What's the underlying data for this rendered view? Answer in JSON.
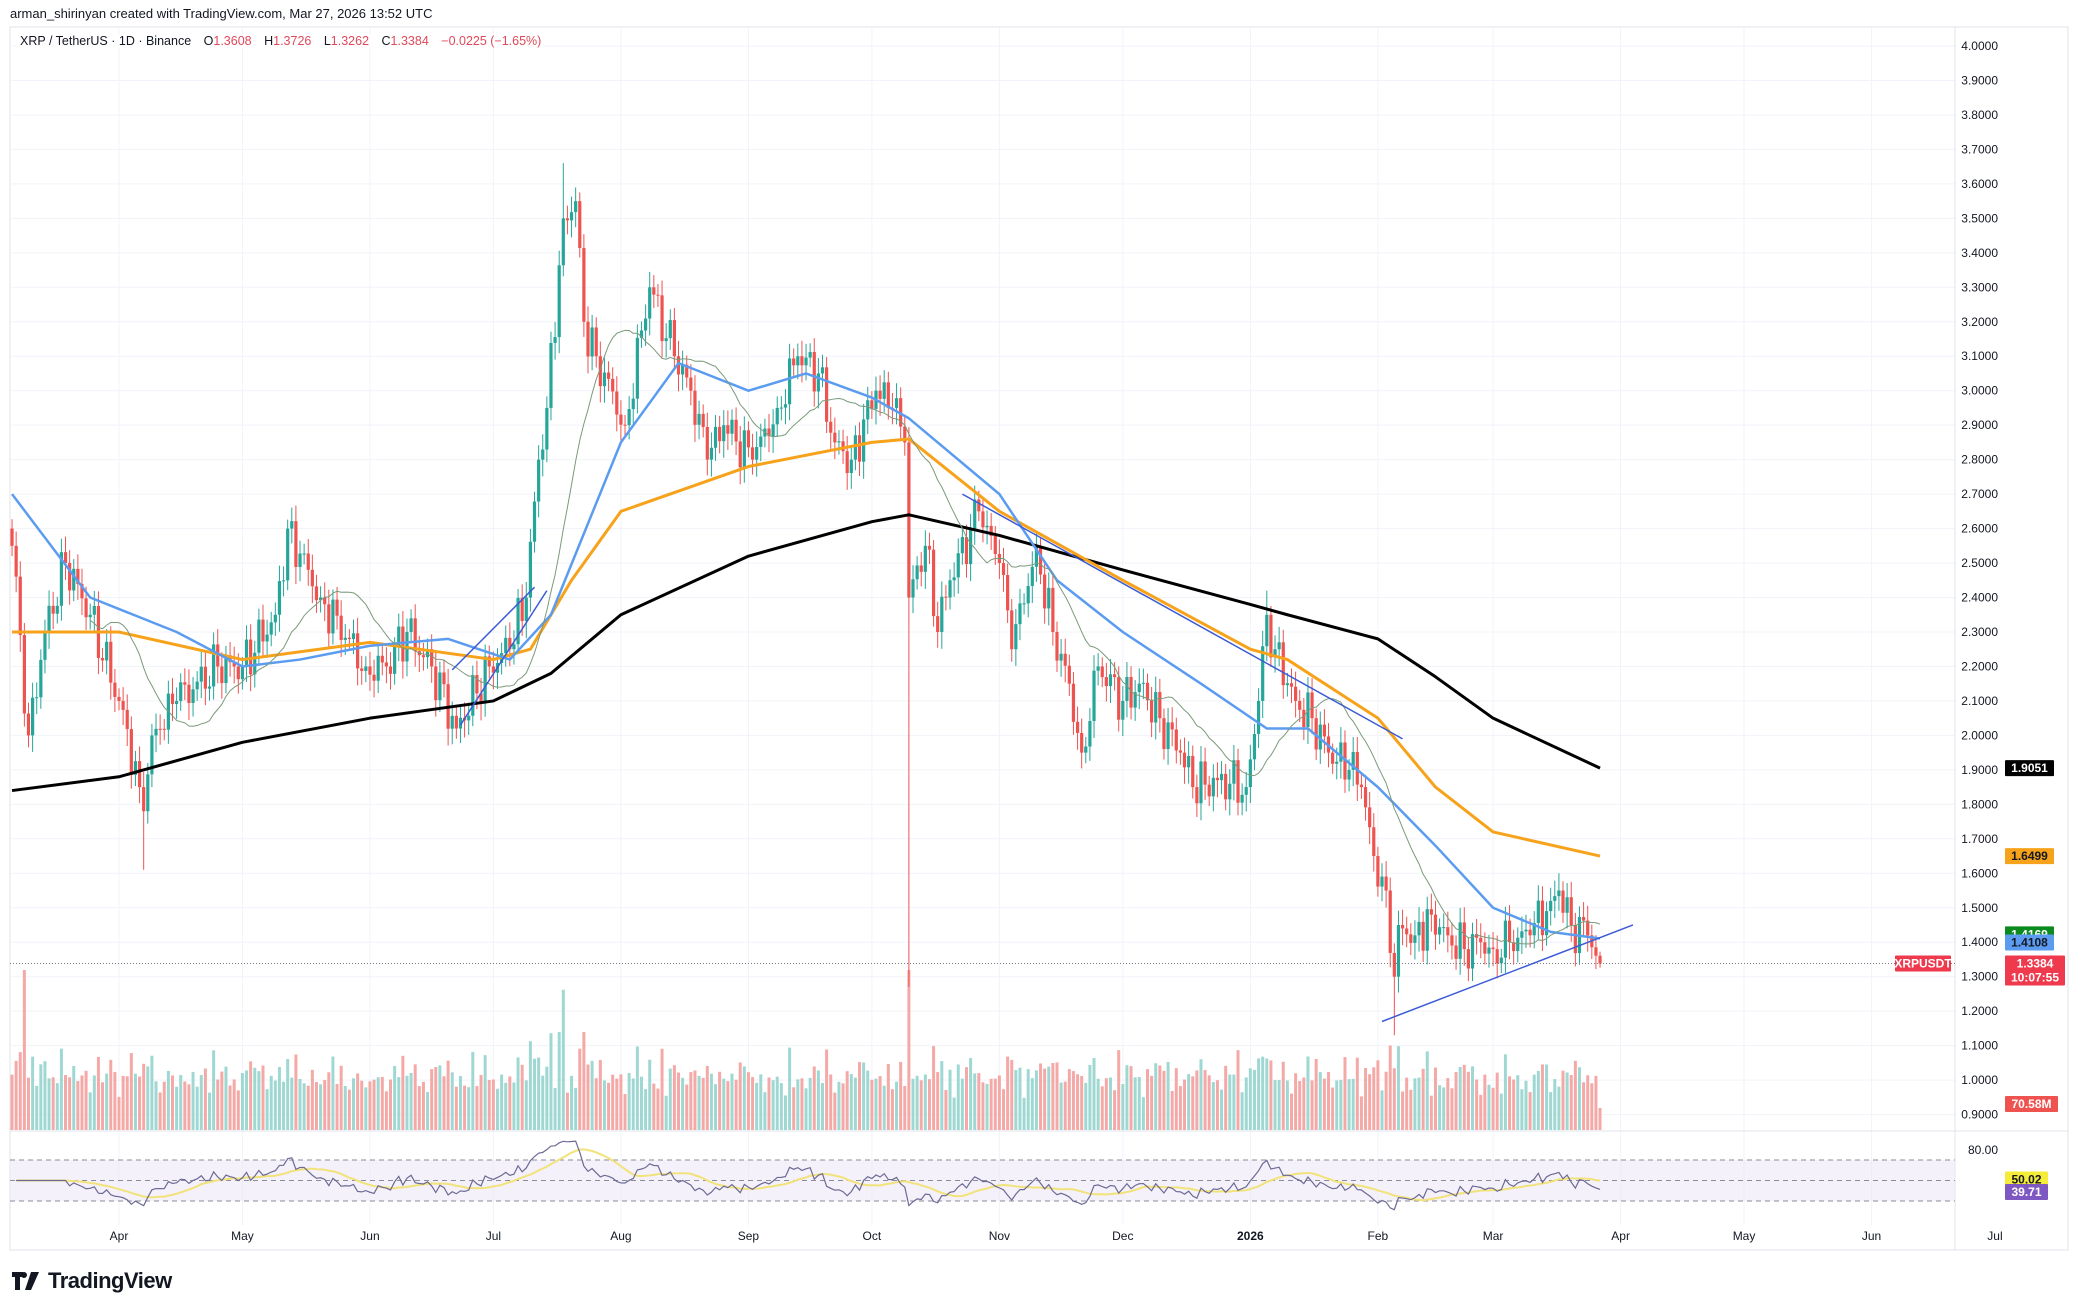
{
  "credit": "arman_shirinyan created with TradingView.com, Mar 27, 2026 13:52 UTC",
  "legend": {
    "symbol": "XRP / TetherUS · 1D · Binance",
    "o_label": "O",
    "o": "1.3608",
    "h_label": "H",
    "h": "1.3726",
    "l_label": "L",
    "l": "1.3262",
    "c_label": "C",
    "c": "1.3384",
    "change": "−0.0225 (−1.65%)"
  },
  "brand": "TradingView",
  "colors": {
    "up": "#26a69a",
    "down": "#ef5350",
    "ma200": "#000000",
    "ma100": "#f7a21b",
    "ma50": "#5b9cf0",
    "ma20": "#7a9a7a",
    "trendline": "#3b5bd6",
    "rsi": "#6c6a94",
    "rsi_ma": "#f2e27a",
    "rsi_band": "#ede7f6",
    "grid": "#f0f3fa"
  },
  "chart_data": {
    "type": "candlestick",
    "symbol": "XRPUSDT",
    "timeframe": "1D",
    "y_axis": {
      "range": [
        0.9,
        4.0
      ],
      "ticks": [
        "4.0000",
        "3.9000",
        "3.8000",
        "3.7000",
        "3.6000",
        "3.5000",
        "3.4000",
        "3.3000",
        "3.2000",
        "3.1000",
        "3.0000",
        "2.9000",
        "2.8000",
        "2.7000",
        "2.6000",
        "2.5000",
        "2.4000",
        "2.3000",
        "2.2000",
        "2.1000",
        "2.0000",
        "1.9000",
        "1.8000",
        "1.7000",
        "1.6000",
        "1.5000",
        "1.4000",
        "1.3000",
        "1.2000",
        "1.1000",
        "1.0000",
        "0.9000"
      ],
      "scale": "linear"
    },
    "x_axis": {
      "range": [
        "2025-03-06",
        "2026-07-05"
      ],
      "ticks": [
        {
          "date": "2025-04-01",
          "label": "Apr"
        },
        {
          "date": "2025-05-01",
          "label": "May"
        },
        {
          "date": "2025-06-01",
          "label": "Jun"
        },
        {
          "date": "2025-07-01",
          "label": "Jul"
        },
        {
          "date": "2025-08-01",
          "label": "Aug"
        },
        {
          "date": "2025-09-01",
          "label": "Sep"
        },
        {
          "date": "2025-10-01",
          "label": "Oct"
        },
        {
          "date": "2025-11-01",
          "label": "Nov"
        },
        {
          "date": "2025-12-01",
          "label": "Dec"
        },
        {
          "date": "2026-01-01",
          "label": "2026",
          "bold": true
        },
        {
          "date": "2026-02-01",
          "label": "Feb"
        },
        {
          "date": "2026-03-01",
          "label": "Mar"
        },
        {
          "date": "2026-04-01",
          "label": "Apr"
        },
        {
          "date": "2026-05-01",
          "label": "May"
        },
        {
          "date": "2026-06-01",
          "label": "Jun"
        },
        {
          "date": "2026-07-01",
          "label": "Jul"
        }
      ]
    },
    "grid": true,
    "close_path": [
      [
        "2025-03-06",
        2.55
      ],
      [
        "2025-03-10",
        2.0
      ],
      [
        "2025-03-14",
        2.3
      ],
      [
        "2025-03-19",
        2.5
      ],
      [
        "2025-03-25",
        2.35
      ],
      [
        "2025-04-01",
        2.1
      ],
      [
        "2025-04-06",
        1.85
      ],
      [
        "2025-04-07",
        1.78
      ],
      [
        "2025-04-09",
        2.0
      ],
      [
        "2025-04-15",
        2.1
      ],
      [
        "2025-04-25",
        2.2
      ],
      [
        "2025-05-01",
        2.2
      ],
      [
        "2025-05-09",
        2.35
      ],
      [
        "2025-05-12",
        2.6
      ],
      [
        "2025-05-20",
        2.4
      ],
      [
        "2025-05-31",
        2.2
      ],
      [
        "2025-06-05",
        2.2
      ],
      [
        "2025-06-10",
        2.3
      ],
      [
        "2025-06-16",
        2.2
      ],
      [
        "2025-06-22",
        2.02
      ],
      [
        "2025-06-30",
        2.2
      ],
      [
        "2025-07-05",
        2.25
      ],
      [
        "2025-07-09",
        2.4
      ],
      [
        "2025-07-12",
        2.8
      ],
      [
        "2025-07-14",
        2.95
      ],
      [
        "2025-07-18",
        3.5
      ],
      [
        "2025-07-21",
        3.55
      ],
      [
        "2025-07-23",
        3.2
      ],
      [
        "2025-07-26",
        3.1
      ],
      [
        "2025-08-02",
        2.9
      ],
      [
        "2025-08-08",
        3.3
      ],
      [
        "2025-08-14",
        3.1
      ],
      [
        "2025-08-18",
        3.0
      ],
      [
        "2025-08-22",
        2.8
      ],
      [
        "2025-08-26",
        2.9
      ],
      [
        "2025-09-02",
        2.8
      ],
      [
        "2025-09-08",
        2.95
      ],
      [
        "2025-09-13",
        3.1
      ],
      [
        "2025-09-18",
        3.05
      ],
      [
        "2025-09-22",
        2.85
      ],
      [
        "2025-09-26",
        2.8
      ],
      [
        "2025-10-02",
        3.0
      ],
      [
        "2025-10-06",
        2.95
      ],
      [
        "2025-10-09",
        2.85
      ],
      [
        "2025-10-10",
        2.4
      ],
      [
        "2025-10-14",
        2.55
      ],
      [
        "2025-10-17",
        2.3
      ],
      [
        "2025-10-20",
        2.45
      ],
      [
        "2025-10-27",
        2.65
      ],
      [
        "2025-11-01",
        2.5
      ],
      [
        "2025-11-04",
        2.25
      ],
      [
        "2025-11-10",
        2.55
      ],
      [
        "2025-11-14",
        2.3
      ],
      [
        "2025-11-18",
        2.15
      ],
      [
        "2025-11-21",
        1.95
      ],
      [
        "2025-11-25",
        2.2
      ],
      [
        "2025-12-01",
        2.1
      ],
      [
        "2025-12-05",
        2.15
      ],
      [
        "2025-12-10",
        2.05
      ],
      [
        "2025-12-15",
        1.95
      ],
      [
        "2025-12-18",
        1.85
      ],
      [
        "2025-12-24",
        1.87
      ],
      [
        "2025-12-31",
        1.85
      ],
      [
        "2026-01-03",
        2.1
      ],
      [
        "2026-01-05",
        2.35
      ],
      [
        "2026-01-07",
        2.25
      ],
      [
        "2026-01-12",
        2.1
      ],
      [
        "2026-01-16",
        2.05
      ],
      [
        "2026-01-20",
        1.95
      ],
      [
        "2026-01-25",
        1.9
      ],
      [
        "2026-01-28",
        1.85
      ],
      [
        "2026-01-31",
        1.65
      ],
      [
        "2026-02-03",
        1.55
      ],
      [
        "2026-02-05",
        1.3
      ],
      [
        "2026-02-06",
        1.45
      ],
      [
        "2026-02-10",
        1.42
      ],
      [
        "2026-02-14",
        1.48
      ],
      [
        "2026-02-18",
        1.42
      ],
      [
        "2026-02-22",
        1.38
      ],
      [
        "2026-02-26",
        1.4
      ],
      [
        "2026-03-01",
        1.38
      ],
      [
        "2026-03-05",
        1.4
      ],
      [
        "2026-03-10",
        1.42
      ],
      [
        "2026-03-15",
        1.52
      ],
      [
        "2026-03-17",
        1.55
      ],
      [
        "2026-03-20",
        1.45
      ],
      [
        "2026-03-24",
        1.42
      ],
      [
        "2026-03-26",
        1.3608
      ],
      [
        "2026-03-27",
        1.3384
      ]
    ],
    "last_candle": {
      "date": "2026-03-27",
      "open": 1.3608,
      "high": 1.3726,
      "low": 1.3262,
      "close": 1.3384
    },
    "wicks": [
      {
        "date": "2025-04-07",
        "low": 1.61
      },
      {
        "date": "2025-07-18",
        "high": 3.66
      },
      {
        "date": "2025-10-10",
        "low": 1.27
      },
      {
        "date": "2026-01-05",
        "high": 2.42
      },
      {
        "date": "2026-02-05",
        "low": 1.13
      },
      {
        "date": "2026-03-17",
        "high": 1.6
      }
    ],
    "moving_averages": [
      {
        "period": 200,
        "color": "#000000",
        "last": "1.9051",
        "points": [
          [
            "2025-03-06",
            1.84
          ],
          [
            "2025-04-01",
            1.88
          ],
          [
            "2025-05-01",
            1.98
          ],
          [
            "2025-06-01",
            2.05
          ],
          [
            "2025-07-01",
            2.1
          ],
          [
            "2025-07-15",
            2.18
          ],
          [
            "2025-08-01",
            2.35
          ],
          [
            "2025-09-01",
            2.52
          ],
          [
            "2025-10-01",
            2.62
          ],
          [
            "2025-10-10",
            2.64
          ],
          [
            "2025-11-01",
            2.58
          ],
          [
            "2025-12-01",
            2.48
          ],
          [
            "2026-01-01",
            2.38
          ],
          [
            "2026-01-10",
            2.35
          ],
          [
            "2026-02-01",
            2.28
          ],
          [
            "2026-02-15",
            2.17
          ],
          [
            "2026-03-01",
            2.05
          ],
          [
            "2026-03-27",
            1.9051
          ]
        ]
      },
      {
        "period": 100,
        "color": "#f7a21b",
        "last": "1.6499",
        "points": [
          [
            "2025-03-06",
            2.3
          ],
          [
            "2025-04-01",
            2.3
          ],
          [
            "2025-05-01",
            2.22
          ],
          [
            "2025-06-01",
            2.27
          ],
          [
            "2025-07-01",
            2.22
          ],
          [
            "2025-07-10",
            2.25
          ],
          [
            "2025-07-20",
            2.45
          ],
          [
            "2025-08-01",
            2.65
          ],
          [
            "2025-09-01",
            2.78
          ],
          [
            "2025-10-01",
            2.85
          ],
          [
            "2025-10-10",
            2.86
          ],
          [
            "2025-11-01",
            2.65
          ],
          [
            "2025-12-01",
            2.45
          ],
          [
            "2026-01-01",
            2.25
          ],
          [
            "2026-01-10",
            2.22
          ],
          [
            "2026-02-01",
            2.05
          ],
          [
            "2026-02-15",
            1.85
          ],
          [
            "2026-03-01",
            1.72
          ],
          [
            "2026-03-27",
            1.6499
          ]
        ]
      },
      {
        "period": 50,
        "color": "#5b9cf0",
        "last": "1.4108",
        "points": [
          [
            "2025-03-06",
            2.7
          ],
          [
            "2025-03-25",
            2.4
          ],
          [
            "2025-04-15",
            2.3
          ],
          [
            "2025-05-01",
            2.2
          ],
          [
            "2025-05-15",
            2.22
          ],
          [
            "2025-06-01",
            2.26
          ],
          [
            "2025-06-20",
            2.28
          ],
          [
            "2025-07-05",
            2.22
          ],
          [
            "2025-07-15",
            2.35
          ],
          [
            "2025-08-01",
            2.85
          ],
          [
            "2025-08-15",
            3.08
          ],
          [
            "2025-09-01",
            3.0
          ],
          [
            "2025-09-15",
            3.05
          ],
          [
            "2025-10-01",
            2.98
          ],
          [
            "2025-10-10",
            2.92
          ],
          [
            "2025-11-01",
            2.7
          ],
          [
            "2025-11-15",
            2.45
          ],
          [
            "2025-12-01",
            2.3
          ],
          [
            "2025-12-20",
            2.15
          ],
          [
            "2026-01-05",
            2.02
          ],
          [
            "2026-01-15",
            2.02
          ],
          [
            "2026-02-01",
            1.85
          ],
          [
            "2026-02-15",
            1.68
          ],
          [
            "2026-03-01",
            1.5
          ],
          [
            "2026-03-15",
            1.43
          ],
          [
            "2026-03-27",
            1.4108
          ]
        ]
      },
      {
        "period": 20,
        "color": "#7a9a7a",
        "last": "1.4169"
      }
    ],
    "trendlines": [
      {
        "from": [
          "2025-06-23",
          2.03
        ],
        "to": [
          "2025-07-14",
          2.42
        ]
      },
      {
        "from": [
          "2025-06-21",
          2.19
        ],
        "to": [
          "2025-07-11",
          2.43
        ]
      },
      {
        "from": [
          "2025-10-23",
          2.7
        ],
        "to": [
          "2026-02-07",
          1.99
        ]
      },
      {
        "from": [
          "2026-02-02",
          1.17
        ],
        "to": [
          "2026-04-04",
          1.45
        ]
      }
    ],
    "current_price": {
      "label": "XRPUSDT",
      "value": "1.3384",
      "countdown": "10:07:55"
    },
    "volume": {
      "last": "70.58M"
    },
    "rsi": {
      "value": "39.71",
      "ma": "50.02",
      "levels": [
        70,
        50,
        30
      ],
      "axis_label": "80.00"
    }
  }
}
